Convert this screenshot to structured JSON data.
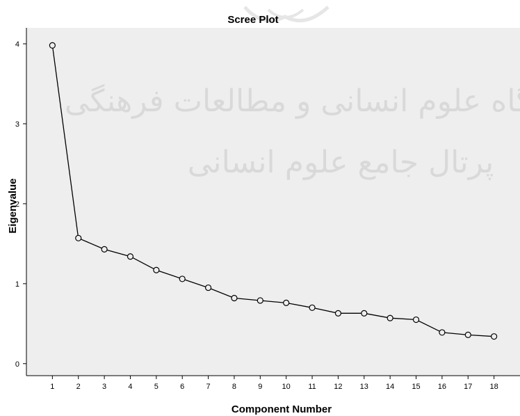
{
  "chart_data": {
    "type": "line",
    "title": "Scree Plot",
    "xlabel": "Component Number",
    "ylabel": "Eigenvalue",
    "x": [
      1,
      2,
      3,
      4,
      5,
      6,
      7,
      8,
      9,
      10,
      11,
      12,
      13,
      14,
      15,
      16,
      17,
      18
    ],
    "values": [
      3.98,
      1.57,
      1.43,
      1.34,
      1.17,
      1.06,
      0.95,
      0.82,
      0.79,
      0.76,
      0.7,
      0.63,
      0.63,
      0.57,
      0.55,
      0.39,
      0.36,
      0.34
    ],
    "xticks": [
      "1",
      "2",
      "3",
      "4",
      "5",
      "6",
      "7",
      "8",
      "9",
      "10",
      "11",
      "12",
      "13",
      "14",
      "15",
      "16",
      "17",
      "18"
    ],
    "yticks": [
      "0",
      "1",
      "2",
      "3",
      "4"
    ],
    "xlim": [
      0,
      19
    ],
    "ylim": [
      -0.15,
      4.2
    ],
    "grid": false,
    "marker": "open-circle",
    "colors": {
      "plot_background": "#eeeeee",
      "line": "#000000",
      "marker_fill": "#eeeeee",
      "watermark": "#c9c9c9"
    }
  },
  "watermark": {
    "line1": "پژوهشگاه علوم انسانی و مطالعات فرهنگی",
    "line2": "پرتال جامع علوم انسانی"
  }
}
